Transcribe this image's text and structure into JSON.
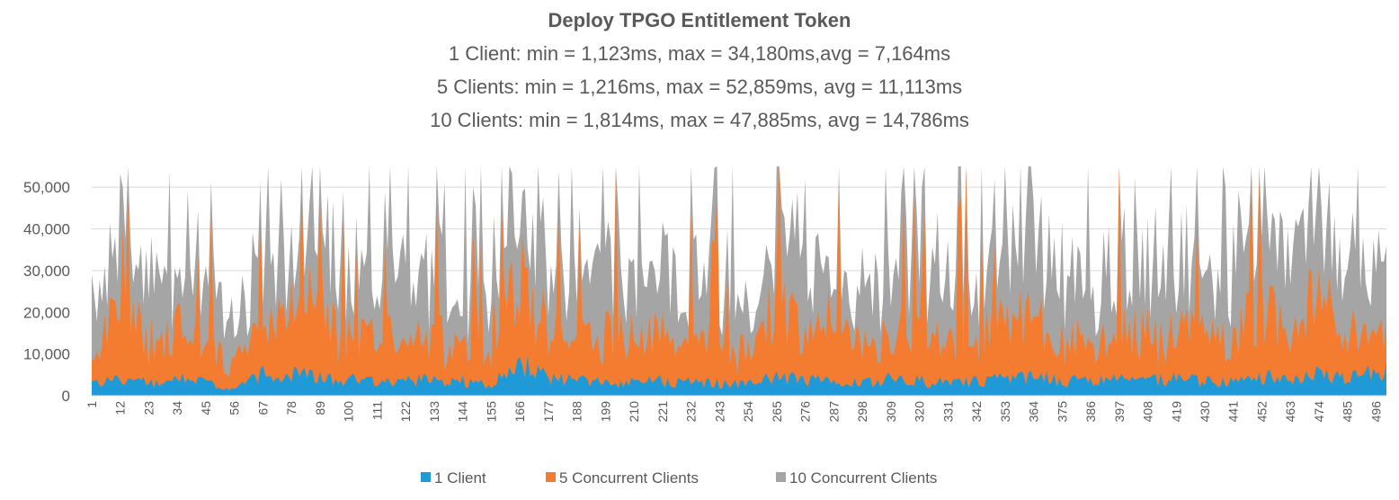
{
  "chart_data": {
    "type": "area",
    "stacked": true,
    "title": "Deploy TPGO Entitlement Token",
    "subtitle_lines": [
      "1 Client: min = 1,123ms, max = 34,180ms,avg = 7,164ms",
      "5 Clients: min = 1,216ms, max = 52,859ms, avg = 11,113ms",
      "10 Clients: min = 1,814ms, max = 47,885ms,  avg = 14,786ms"
    ],
    "x_range": [
      1,
      500
    ],
    "x_tick_labels": [
      "1",
      "12",
      "23",
      "34",
      "45",
      "56",
      "67",
      "78",
      "89",
      "100",
      "111",
      "122",
      "133",
      "144",
      "155",
      "166",
      "177",
      "188",
      "199",
      "210",
      "221",
      "232",
      "243",
      "254",
      "265",
      "276",
      "287",
      "298",
      "309",
      "320",
      "331",
      "342",
      "353",
      "364",
      "375",
      "386",
      "397",
      "408",
      "419",
      "430",
      "441",
      "452",
      "463",
      "474",
      "485",
      "496"
    ],
    "ylim": [
      0,
      55000
    ],
    "y_ticks": [
      0,
      10000,
      20000,
      30000,
      40000,
      50000
    ],
    "y_tick_labels": [
      "0",
      "10,000",
      "20,000",
      "30,000",
      "40,000",
      "50,000"
    ],
    "grid": true,
    "legend_position": "bottom",
    "series": [
      {
        "name": "1 Client",
        "color": "#1f9ad6",
        "stats": {
          "min": 1123,
          "max": 34180,
          "avg": 7164
        }
      },
      {
        "name": "5 Concurrent Clients",
        "color": "#f47c30",
        "stats": {
          "min": 1216,
          "max": 52859,
          "avg": 11113
        }
      },
      {
        "name": "10 Concurrent Clients",
        "color": "#a5a5a5",
        "stats": {
          "min": 1814,
          "max": 47885,
          "avg": 14786
        }
      }
    ],
    "stacked_totals_sampled": {
      "note": "approximate stacked values sampled every 11 x-units starting at x=1",
      "x": [
        1,
        12,
        23,
        34,
        45,
        56,
        67,
        78,
        89,
        100,
        111,
        122,
        133,
        144,
        155,
        166,
        177,
        188,
        199,
        210,
        221,
        232,
        243,
        254,
        265,
        276,
        287,
        298,
        309,
        320,
        331,
        342,
        353,
        364,
        375,
        386,
        397,
        408,
        419,
        430,
        441,
        452,
        463,
        474,
        485,
        496
      ],
      "one_client": [
        3000,
        4000,
        3000,
        4000,
        3000,
        1500,
        5000,
        5500,
        4500,
        4000,
        3000,
        3500,
        4000,
        3500,
        2500,
        8000,
        4000,
        3500,
        3500,
        3000,
        3500,
        3500,
        3000,
        2500,
        5000,
        3500,
        3500,
        3000,
        4000,
        3500,
        3000,
        3500,
        4000,
        4500,
        3500,
        3500,
        4000,
        3500,
        4000,
        3500,
        3500,
        4500,
        4000,
        5000,
        4000,
        6000
      ],
      "one_plus_five": [
        10000,
        20000,
        12000,
        16000,
        12000,
        8000,
        15000,
        22000,
        20000,
        14000,
        14000,
        13000,
        15000,
        12000,
        9000,
        30000,
        14000,
        13000,
        15000,
        13000,
        15000,
        13000,
        12000,
        10000,
        24000,
        14000,
        15000,
        12000,
        14000,
        14000,
        12000,
        14000,
        16000,
        20000,
        14000,
        13000,
        15000,
        14000,
        16000,
        14000,
        13000,
        22000,
        16000,
        24000,
        14000,
        16000
      ],
      "all_three": [
        22000,
        34000,
        25000,
        30000,
        24000,
        18000,
        30000,
        35000,
        42000,
        25000,
        26000,
        28000,
        30000,
        24000,
        20000,
        44000,
        28000,
        26000,
        32000,
        26000,
        30000,
        28000,
        24000,
        22000,
        40000,
        30000,
        28000,
        24000,
        30000,
        33000,
        26000,
        28000,
        32000,
        42000,
        30000,
        26000,
        34000,
        30000,
        32000,
        28000,
        28000,
        40000,
        32000,
        40000,
        30000,
        30000
      ]
    }
  }
}
